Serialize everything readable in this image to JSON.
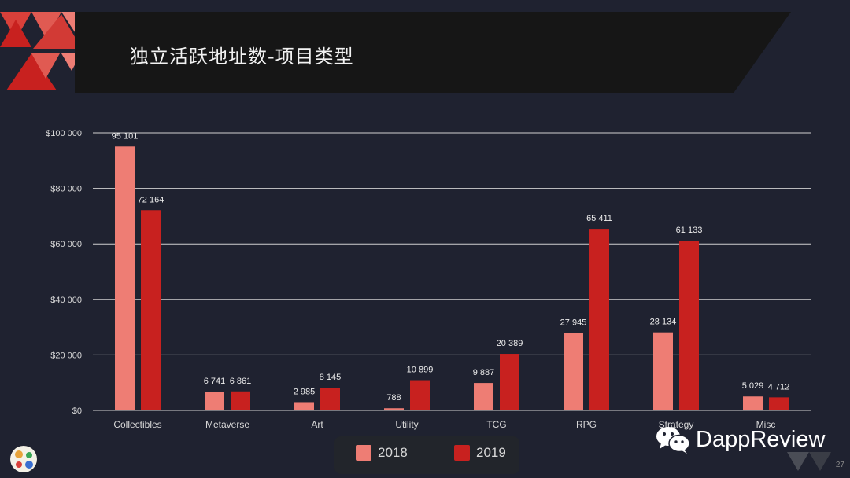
{
  "header": {
    "title": "独立活跃地址数-项目类型"
  },
  "colors": {
    "series_2018": "#ee7d74",
    "series_2019": "#c8211f",
    "background": "#1f2230",
    "banner": "#161616"
  },
  "chart_data": {
    "type": "bar",
    "categories": [
      "Collectibles",
      "Metaverse",
      "Art",
      "Utility",
      "TCG",
      "RPG",
      "Strategy",
      "Misc"
    ],
    "series": [
      {
        "name": "2018",
        "values": [
          95101,
          6741,
          2985,
          788,
          9887,
          27945,
          28134,
          5029
        ],
        "labels": [
          "95 101",
          "6 741",
          "2 985",
          "788",
          "9 887",
          "27 945",
          "28 134",
          "5 029"
        ]
      },
      {
        "name": "2019",
        "values": [
          72164,
          6861,
          8145,
          10899,
          20389,
          65411,
          61133,
          4712
        ],
        "labels": [
          "72 164",
          "6 861",
          "8 145",
          "10 899",
          "20 389",
          "65 411",
          "61 133",
          "4 712"
        ]
      }
    ],
    "ylim": [
      0,
      100000
    ],
    "yticks": [
      0,
      20000,
      40000,
      60000,
      80000,
      100000
    ],
    "ytick_labels": [
      "$0",
      "$20 000",
      "$40 000",
      "$60 000",
      "$80 000",
      "$100 000"
    ],
    "grid": true,
    "legend": "bottom-center",
    "xlabel": "",
    "ylabel": ""
  },
  "legend": {
    "items": [
      "2018",
      "2019"
    ]
  },
  "brand": {
    "name": "DappReview"
  },
  "page": {
    "number": "27"
  }
}
